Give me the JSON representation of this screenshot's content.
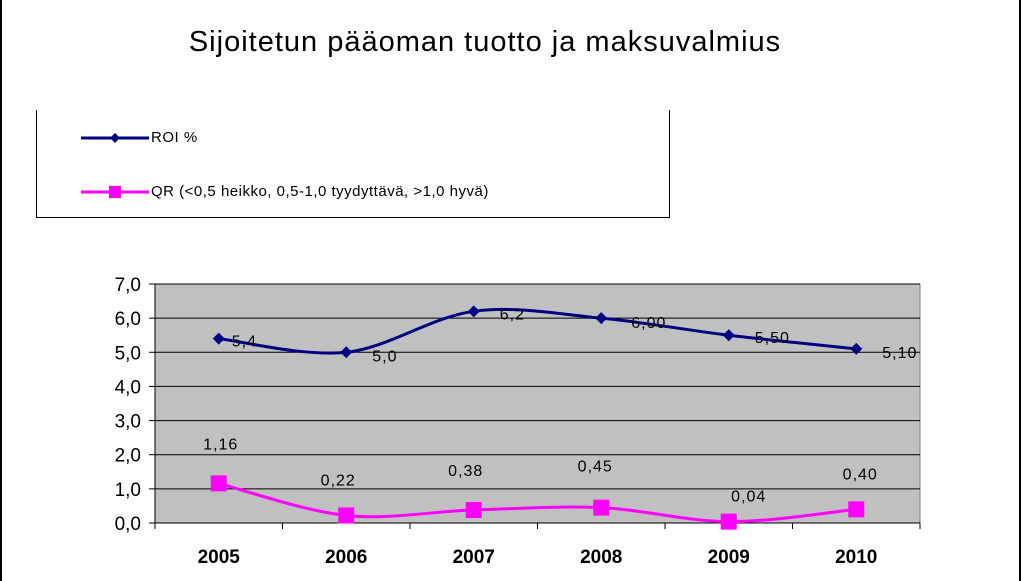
{
  "chart_data": {
    "type": "line",
    "title": "Sijoitetun pääoman tuotto ja maksuvalmius",
    "categories": [
      "2005",
      "2006",
      "2007",
      "2008",
      "2009",
      "2010"
    ],
    "ylim": [
      0,
      7
    ],
    "y_ticks": [
      "0,0",
      "1,0",
      "2,0",
      "3,0",
      "4,0",
      "5,0",
      "6,0",
      "7,0"
    ],
    "grid": true,
    "legend_position": "top-left",
    "series": [
      {
        "name": "ROI %",
        "values": [
          5.4,
          5.0,
          6.2,
          6.0,
          5.5,
          5.1
        ],
        "labels": [
          "5,4",
          "5,0",
          "6,2",
          "6,00",
          "5,50",
          "5,10"
        ],
        "color": "#000080",
        "marker": "diamond"
      },
      {
        "name": "QR (<0,5 heikko, 0,5-1,0 tyydyttävä, >1,0 hyvä)",
        "values": [
          1.16,
          0.22,
          0.38,
          0.45,
          0.04,
          0.4
        ],
        "labels": [
          "1,16",
          "0,22",
          "0,38",
          "0,45",
          "0,04",
          "0,40"
        ],
        "color": "#FF00FF",
        "marker": "square"
      }
    ],
    "plot_background": "#C0C0C0"
  }
}
